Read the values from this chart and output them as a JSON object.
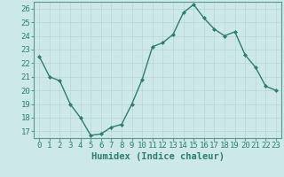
{
  "x": [
    0,
    1,
    2,
    3,
    4,
    5,
    6,
    7,
    8,
    9,
    10,
    11,
    12,
    13,
    14,
    15,
    16,
    17,
    18,
    19,
    20,
    21,
    22,
    23
  ],
  "y": [
    22.5,
    21.0,
    20.7,
    19.0,
    18.0,
    16.7,
    16.8,
    17.3,
    17.5,
    19.0,
    20.8,
    23.2,
    23.5,
    24.1,
    25.7,
    26.3,
    25.3,
    24.5,
    24.0,
    24.3,
    22.6,
    21.7,
    20.3,
    20.0
  ],
  "line_color": "#2e7d6e",
  "marker": "D",
  "marker_size": 2.0,
  "bg_color": "#cce8e8",
  "grid_color": "#b8d4d4",
  "xlabel": "Humidex (Indice chaleur)",
  "xlim": [
    -0.5,
    23.5
  ],
  "ylim": [
    16.5,
    26.5
  ],
  "yticks": [
    17,
    18,
    19,
    20,
    21,
    22,
    23,
    24,
    25,
    26
  ],
  "xticks": [
    0,
    1,
    2,
    3,
    4,
    5,
    6,
    7,
    8,
    9,
    10,
    11,
    12,
    13,
    14,
    15,
    16,
    17,
    18,
    19,
    20,
    21,
    22,
    23
  ],
  "tick_fontsize": 6.5,
  "xlabel_fontsize": 7.5,
  "line_width": 1.0,
  "spine_color": "#5a9a8a",
  "tick_color": "#2e7d6e",
  "label_color": "#2e7d6e"
}
